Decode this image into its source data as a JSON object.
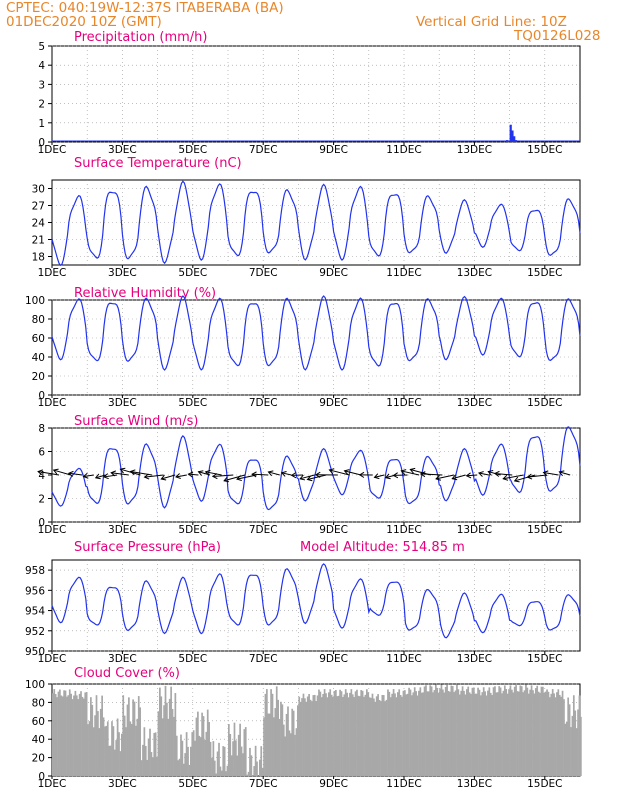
{
  "header": {
    "line1": "CPTEC:   040:19W-12:37S   ITABERABA (BA)",
    "line2": "01DEC2020  10Z (GMT)",
    "grid_note": "Vertical Grid Line: 10Z",
    "code": "TQ0126L028"
  },
  "x_tick_labels": [
    "1DEC",
    "3DEC",
    "5DEC",
    "7DEC",
    "9DEC",
    "11DEC",
    "13DEC",
    "15DEC"
  ],
  "colors": {
    "header": "#e8862a",
    "title": "#e6007e",
    "line": "#2233ee",
    "cloud": "#a8a8a8",
    "grid": "#999999"
  },
  "chart_data": [
    {
      "type": "bar",
      "title": "Precipitation (mm/h)",
      "ylim": [
        0,
        5
      ],
      "yticks": [
        "0",
        "1",
        "2",
        "3",
        "4",
        "5"
      ],
      "x": [
        12.9,
        13.0,
        13.05,
        13.1,
        13.15
      ],
      "values": [
        0.1,
        0.9,
        0.6,
        0.3,
        0.1
      ]
    },
    {
      "type": "line",
      "title": "Surface Temperature (nC)",
      "ylim": [
        16.5,
        31.5
      ],
      "yticks": [
        "18",
        "21",
        "24",
        "27",
        "30"
      ],
      "days": [
        0,
        1,
        2,
        3,
        4,
        5,
        6,
        7,
        8,
        9,
        10,
        11,
        12,
        13,
        14,
        15
      ],
      "maxima": [
        28.5,
        30.0,
        30.0,
        30.5,
        30.5,
        30.0,
        29.5,
        30.0,
        30.0,
        29.5,
        28.5,
        27.5,
        27.0,
        26.5,
        28.0,
        29.5
      ],
      "minima": [
        17.0,
        17.5,
        17.5,
        17.5,
        18.0,
        18.0,
        18.5,
        18.0,
        18.0,
        18.0,
        18.5,
        19.0,
        20.0,
        19.0,
        18.0,
        18.0
      ]
    },
    {
      "type": "line",
      "title": "Relative Humidity (%)",
      "ylim": [
        0,
        100
      ],
      "yticks": [
        "0",
        "20",
        "40",
        "60",
        "80",
        "100"
      ],
      "days": [
        0,
        1,
        2,
        3,
        4,
        5,
        6,
        7,
        8,
        9,
        10,
        11,
        12,
        13,
        14,
        15
      ],
      "maxima": [
        100,
        100,
        100,
        100,
        100,
        100,
        100,
        100,
        100,
        100,
        100,
        100,
        100,
        100,
        100,
        100
      ],
      "minima": [
        40,
        35,
        35,
        30,
        30,
        30,
        30,
        30,
        30,
        30,
        35,
        40,
        45,
        40,
        35,
        35
      ]
    },
    {
      "type": "line",
      "title": "Surface Wind (m/s)",
      "ylim": [
        0,
        8
      ],
      "yticks": [
        "0",
        "2",
        "4",
        "6",
        "8"
      ],
      "days": [
        0,
        1,
        2,
        3,
        4,
        5,
        6,
        7,
        8,
        9,
        10,
        11,
        12,
        13,
        14,
        15
      ],
      "maxima": [
        4.5,
        6.5,
        6.5,
        7.0,
        6.5,
        5.5,
        5.5,
        6.0,
        6.0,
        5.5,
        5.5,
        6.0,
        6.5,
        7.5,
        8.0,
        7.5
      ],
      "minima": [
        1.5,
        1.5,
        1.5,
        1.5,
        2.0,
        1.5,
        1.0,
        2.0,
        2.5,
        2.0,
        1.5,
        2.0,
        2.5,
        2.5,
        2.5,
        2.0
      ]
    },
    {
      "type": "line",
      "title": "Surface Pressure (hPa)",
      "subtitle": "Model Altitude: 514.85 m",
      "ylim": [
        950,
        959
      ],
      "yticks": [
        "950",
        "952",
        "954",
        "956",
        "958"
      ],
      "days": [
        0,
        1,
        2,
        3,
        4,
        5,
        6,
        7,
        8,
        9,
        10,
        11,
        12,
        13,
        14,
        15
      ],
      "maxima": [
        957.2,
        956.5,
        956.8,
        957.0,
        957.5,
        957.8,
        958.0,
        958.3,
        957.0,
        957.0,
        956.0,
        955.5,
        955.5,
        955.0,
        955.5,
        955.0
      ],
      "minima": [
        953.0,
        952.5,
        952.0,
        952.0,
        952.0,
        952.5,
        952.5,
        953.0,
        952.5,
        953.5,
        952.0,
        951.5,
        952.0,
        952.5,
        952.0,
        951.0
      ]
    },
    {
      "type": "area",
      "title": "Cloud Cover (%)",
      "ylim": [
        0,
        100
      ],
      "yticks": [
        "0",
        "20",
        "40",
        "60",
        "80",
        "100"
      ],
      "days": [
        0,
        0.5,
        1,
        1.5,
        2,
        2.5,
        3,
        3.5,
        4,
        4.5,
        5,
        5.5,
        6,
        6.5,
        7,
        7.5,
        8,
        8.5,
        9,
        9.5,
        10,
        10.5,
        11,
        11.5,
        12,
        12.5,
        13,
        13.5,
        14,
        14.5,
        15,
        15.5
      ],
      "values": [
        90,
        88,
        70,
        45,
        70,
        35,
        80,
        30,
        55,
        20,
        40,
        15,
        80,
        60,
        85,
        90,
        90,
        90,
        85,
        90,
        92,
        95,
        95,
        93,
        92,
        94,
        95,
        94,
        90,
        70,
        80,
        60
      ]
    }
  ]
}
